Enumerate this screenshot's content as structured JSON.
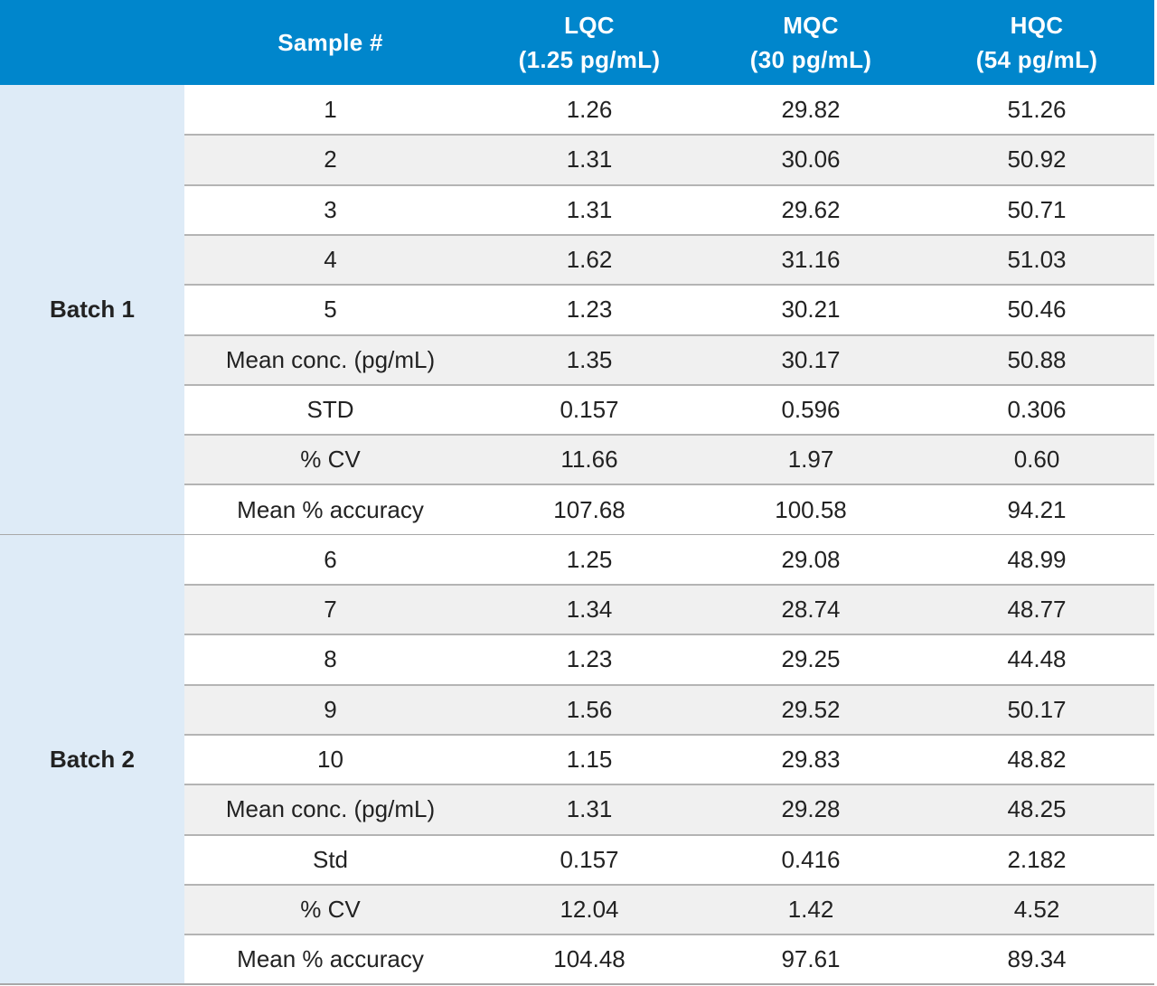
{
  "header": {
    "sample_col": "Sample #",
    "lqc": {
      "line1": "LQC",
      "line2": "(1.25 pg/mL)"
    },
    "mqc": {
      "line1": "MQC",
      "line2": "(30 pg/mL)"
    },
    "hqc": {
      "line1": "HQC",
      "line2": "(54 pg/mL)"
    }
  },
  "batches": [
    {
      "label": "Batch 1",
      "rows": [
        {
          "sample": "1",
          "lqc": "1.26",
          "mqc": "29.82",
          "hqc": "51.26"
        },
        {
          "sample": "2",
          "lqc": "1.31",
          "mqc": "30.06",
          "hqc": "50.92"
        },
        {
          "sample": "3",
          "lqc": "1.31",
          "mqc": "29.62",
          "hqc": "50.71"
        },
        {
          "sample": "4",
          "lqc": "1.62",
          "mqc": "31.16",
          "hqc": "51.03"
        },
        {
          "sample": "5",
          "lqc": "1.23",
          "mqc": "30.21",
          "hqc": "50.46"
        },
        {
          "sample": "Mean conc. (pg/mL)",
          "lqc": "1.35",
          "mqc": "30.17",
          "hqc": "50.88"
        },
        {
          "sample": "STD",
          "lqc": "0.157",
          "mqc": "0.596",
          "hqc": "0.306"
        },
        {
          "sample": "% CV",
          "lqc": "11.66",
          "mqc": "1.97",
          "hqc": "0.60"
        },
        {
          "sample": "Mean % accuracy",
          "lqc": "107.68",
          "mqc": "100.58",
          "hqc": "94.21"
        }
      ]
    },
    {
      "label": "Batch 2",
      "rows": [
        {
          "sample": "6",
          "lqc": "1.25",
          "mqc": "29.08",
          "hqc": "48.99"
        },
        {
          "sample": "7",
          "lqc": "1.34",
          "mqc": "28.74",
          "hqc": "48.77"
        },
        {
          "sample": "8",
          "lqc": "1.23",
          "mqc": "29.25",
          "hqc": "44.48"
        },
        {
          "sample": "9",
          "lqc": "1.56",
          "mqc": "29.52",
          "hqc": "50.17"
        },
        {
          "sample": "10",
          "lqc": "1.15",
          "mqc": "29.83",
          "hqc": "48.82"
        },
        {
          "sample": "Mean conc. (pg/mL)",
          "lqc": "1.31",
          "mqc": "29.28",
          "hqc": "48.25"
        },
        {
          "sample": "Std",
          "lqc": "0.157",
          "mqc": "0.416",
          "hqc": "2.182"
        },
        {
          "sample": "% CV",
          "lqc": "12.04",
          "mqc": "1.42",
          "hqc": "4.52"
        },
        {
          "sample": "Mean % accuracy",
          "lqc": "104.48",
          "mqc": "97.61",
          "hqc": "89.34"
        }
      ]
    }
  ],
  "colors": {
    "header_bg": "#0086cc",
    "header_text": "#ffffff",
    "batch_bg": "#deebf7",
    "row_alt_bg": "#f0f0f0",
    "divider": "#b4b4b4"
  }
}
